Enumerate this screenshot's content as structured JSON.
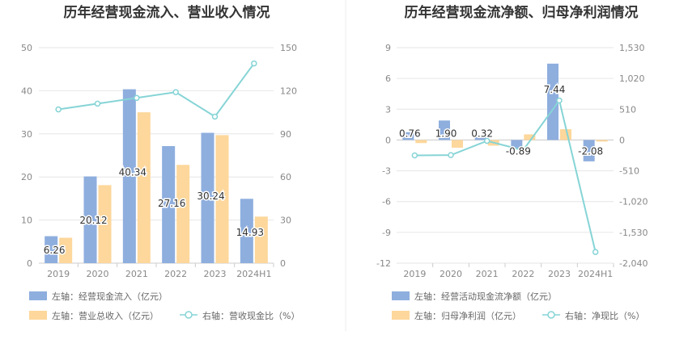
{
  "charts": [
    {
      "title": "历年经营现金流入、营业收入情况",
      "legend": {
        "bar1": "左轴：经营现金流入（亿元）",
        "bar2": "左轴：营业总收入（亿元）",
        "line": "右轴：营收现金比（%）"
      }
    },
    {
      "title": "历年经营现金流净额、归母净利润情况",
      "legend": {
        "bar1": "左轴：经营活动现金流净额（亿元）",
        "bar2": "左轴：归母净利润（亿元）",
        "line": "右轴：净现比（%）"
      }
    }
  ],
  "chart_data": [
    {
      "type": "bar",
      "categories": [
        "2019",
        "2020",
        "2021",
        "2022",
        "2023",
        "2024H1"
      ],
      "series": [
        {
          "name": "经营现金流入",
          "axis": "left",
          "kind": "bar",
          "color": "#8eaede",
          "values": [
            6.26,
            20.12,
            40.34,
            27.16,
            30.24,
            14.93
          ],
          "labels": [
            "6.26",
            "20.12",
            "40.34",
            "27.16",
            "30.24",
            "14.93"
          ]
        },
        {
          "name": "营业总收入",
          "axis": "left",
          "kind": "bar",
          "color": "#fdd79b",
          "values": [
            5.9,
            18.1,
            35.0,
            22.8,
            29.7,
            10.8
          ]
        },
        {
          "name": "营收现金比",
          "axis": "right",
          "kind": "line",
          "color": "#86d4d6",
          "values": [
            107,
            111,
            115,
            119,
            102,
            139
          ]
        }
      ],
      "yLeft": {
        "min": 0,
        "max": 50,
        "ticks": [
          "0",
          "10",
          "20",
          "30",
          "40",
          "50"
        ]
      },
      "yRight": {
        "min": 0,
        "max": 150,
        "ticks": [
          "0",
          "30",
          "60",
          "90",
          "120",
          "150"
        ]
      }
    },
    {
      "type": "bar",
      "categories": [
        "2019",
        "2020",
        "2021",
        "2022",
        "2023",
        "2024H1"
      ],
      "series": [
        {
          "name": "经营活动现金流净额",
          "axis": "left",
          "kind": "bar",
          "color": "#8eaede",
          "values": [
            0.76,
            1.9,
            0.32,
            -0.89,
            7.44,
            -2.08
          ],
          "labels": [
            "0.76",
            "1.90",
            "0.32",
            "-0.89",
            "7.44",
            "-2.08"
          ]
        },
        {
          "name": "归母净利润",
          "axis": "left",
          "kind": "bar",
          "color": "#fdd79b",
          "values": [
            -0.3,
            -0.75,
            -0.55,
            0.55,
            1.05,
            -0.15
          ]
        },
        {
          "name": "净现比",
          "axis": "right",
          "kind": "line",
          "color": "#86d4d6",
          "values": [
            -255,
            -250,
            -15,
            -170,
            655,
            -1855
          ]
        }
      ],
      "yLeft": {
        "min": -12,
        "max": 9,
        "ticks": [
          "-12",
          "-9",
          "-6",
          "-3",
          "0",
          "3",
          "6",
          "9"
        ]
      },
      "yRight": {
        "min": -2040,
        "max": 1530,
        "ticks": [
          "-2,040",
          "-1,530",
          "-1,020",
          "-510",
          "0",
          "510",
          "1,020",
          "1,530"
        ]
      }
    }
  ]
}
